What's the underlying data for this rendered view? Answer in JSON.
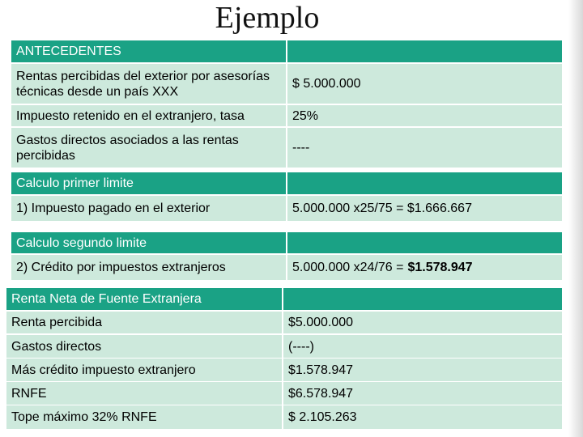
{
  "title": "Ejemplo",
  "tables": [
    {
      "sections": [
        {
          "header": "ANTECEDENTES",
          "rows": [
            [
              "Rentas percibidas del exterior por asesorías técnicas desde un país XXX",
              "$ 5.000.000"
            ],
            [
              "Impuesto retenido en el extranjero, tasa",
              "25%"
            ],
            [
              "Gastos directos asociados a las rentas percibidas",
              "----"
            ]
          ]
        },
        {
          "header": "Calculo primer limite",
          "rows": [
            [
              "1) Impuesto pagado en el exterior",
              "5.000.000 x25/75  = $1.666.667"
            ]
          ]
        },
        {
          "header": "Calculo segundo limite",
          "rows": [
            [
              "2) Crédito por impuestos extranjeros",
              "5.000.000 x24/76  =",
              "$1.578.947"
            ]
          ]
        }
      ]
    },
    {
      "sections": [
        {
          "header": "Renta Neta de Fuente Extranjera",
          "rows": [
            [
              "Renta percibida",
              "$5.000.000"
            ],
            [
              "Gastos directos",
              "(----)"
            ],
            [
              "Más crédito impuesto extranjero",
              "$1.578.947"
            ],
            [
              "RNFE",
              "$6.578.947"
            ],
            [
              "Tope máximo 32%  RNFE",
              "$ 2.105.263"
            ]
          ]
        }
      ]
    }
  ]
}
